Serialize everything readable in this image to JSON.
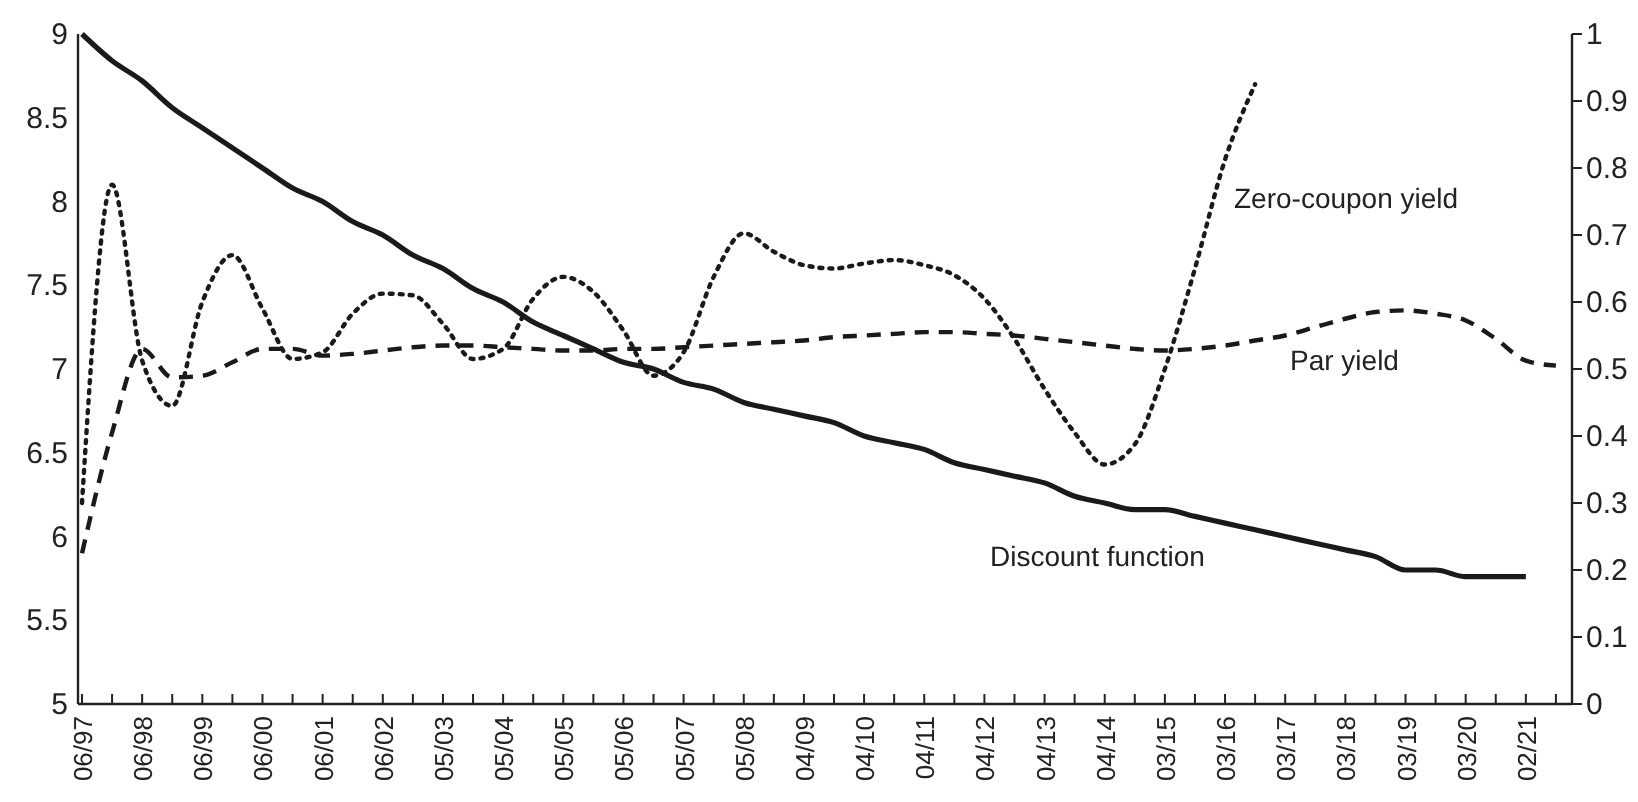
{
  "chart_data": {
    "type": "line",
    "categories": [
      "06/97",
      null,
      "06/98",
      null,
      "06/99",
      null,
      "06/00",
      null,
      "06/01",
      null,
      "06/02",
      null,
      "05/03",
      null,
      "05/04",
      null,
      "05/05",
      null,
      "05/06",
      null,
      "05/07",
      null,
      "05/08",
      null,
      "04/09",
      null,
      "04/10",
      null,
      "04/11",
      null,
      "04/12",
      null,
      "04/13",
      null,
      "04/14",
      null,
      "03/15",
      null,
      "03/16",
      null,
      "03/17",
      null,
      "03/18",
      null,
      "03/19",
      null,
      "03/20",
      null,
      "02/21",
      null
    ],
    "ylim": [
      5,
      9
    ],
    "yticks": [
      5,
      5.5,
      6,
      6.5,
      7,
      7.5,
      8,
      8.5,
      9
    ],
    "y2lim": [
      0,
      1
    ],
    "y2ticks": [
      0,
      0.1,
      0.2,
      0.3,
      0.4,
      0.5,
      0.6,
      0.7,
      0.8,
      0.9,
      1
    ],
    "series": [
      {
        "name": "Zero-coupon yield",
        "color": "#1a1a1a",
        "line_style": "dotted",
        "values": [
          6.2,
          8.1,
          7.05,
          6.78,
          7.4,
          7.68,
          7.36,
          7.06,
          7.1,
          7.33,
          7.45,
          7.44,
          7.27,
          7.06,
          7.12,
          7.42,
          7.55,
          7.46,
          7.23,
          6.96,
          7.1,
          7.55,
          7.81,
          7.7,
          7.62,
          7.6,
          7.63,
          7.65,
          7.62,
          7.56,
          7.42,
          7.18,
          6.88,
          6.62,
          6.43,
          6.55,
          7.0,
          7.6,
          8.25,
          8.7,
          null,
          null,
          null,
          null,
          null,
          null,
          null,
          null,
          null,
          null
        ]
      },
      {
        "name": "Par yield",
        "color": "#1a1a1a",
        "line_style": "dashed",
        "values": [
          5.9,
          6.62,
          7.12,
          6.95,
          6.96,
          7.04,
          7.12,
          7.12,
          7.08,
          7.09,
          7.11,
          7.13,
          7.14,
          7.14,
          7.13,
          7.12,
          7.11,
          7.11,
          7.12,
          7.12,
          7.13,
          7.14,
          7.15,
          7.16,
          7.17,
          7.19,
          7.2,
          7.21,
          7.22,
          7.22,
          7.21,
          7.2,
          7.18,
          7.16,
          7.14,
          7.12,
          7.11,
          7.12,
          7.14,
          7.17,
          7.2,
          7.25,
          7.3,
          7.34,
          7.35,
          7.33,
          7.29,
          7.18,
          7.05,
          7.02
        ]
      },
      {
        "name": "Discount function",
        "color": "#1a1a1a",
        "line_style": "solid",
        "axis": "y2",
        "values": [
          1.0,
          0.96,
          0.93,
          0.89,
          0.86,
          0.83,
          0.8,
          0.77,
          0.75,
          0.72,
          0.7,
          0.67,
          0.65,
          0.62,
          0.6,
          0.57,
          0.55,
          0.53,
          0.51,
          0.5,
          0.48,
          0.47,
          0.45,
          0.44,
          0.43,
          0.42,
          0.4,
          0.39,
          0.38,
          0.36,
          0.35,
          0.34,
          0.33,
          0.31,
          0.3,
          0.29,
          0.29,
          0.28,
          0.27,
          0.26,
          0.25,
          0.24,
          0.23,
          0.22,
          0.2,
          0.2,
          0.19,
          0.19,
          0.19,
          null
        ]
      }
    ]
  }
}
